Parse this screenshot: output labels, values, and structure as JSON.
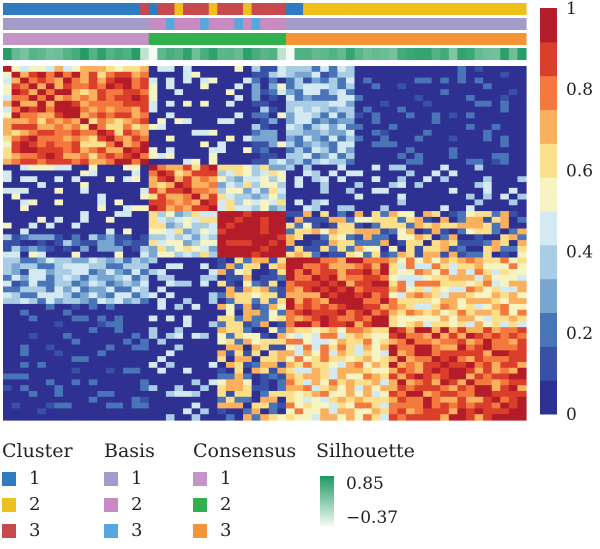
{
  "chart_data": {
    "type": "heatmap",
    "description_scale": "consensus matrix, value 0..1",
    "n_samples": 61,
    "cluster_boundaries": [
      17,
      33
    ],
    "palette": [
      "#2E3092",
      "#3851A6",
      "#4A74B8",
      "#79A6D1",
      "#A9CDE4",
      "#D4EAF3",
      "#F6F4C3",
      "#FCDF8A",
      "#FBB05E",
      "#F3793F",
      "#DC3E2C",
      "#B31C28"
    ],
    "colorbar": {
      "ticks": [
        "0",
        "0.2",
        "0.4",
        "0.6",
        "0.8",
        "1"
      ],
      "tick_values": [
        0,
        0.2,
        0.4,
        0.6,
        0.8,
        1
      ],
      "range": [
        0,
        1
      ]
    },
    "annotation_tracks": [
      "Cluster",
      "Basis",
      "Consensus",
      "Silhouette"
    ],
    "track_colors": {
      "Cluster": {
        "1": "#2E7BBF",
        "2": "#EDC01C",
        "3": "#C8494C"
      },
      "Basis": {
        "1": "#A49BC9",
        "2": "#C98AC1",
        "3": "#55A7DD"
      },
      "Consensus": {
        "1": "#C494C7",
        "2": "#33B04E",
        "3": "#F59436"
      },
      "Silhouette": {
        "high": "#1E9A61",
        "low": "#F4FAF6"
      }
    },
    "legends": [
      {
        "title": "Cluster",
        "items": [
          {
            "label": "1",
            "color": "#2E7BBF"
          },
          {
            "label": "2",
            "color": "#EDC01C"
          },
          {
            "label": "3",
            "color": "#C8494C"
          }
        ]
      },
      {
        "title": "Basis",
        "items": [
          {
            "label": "1",
            "color": "#A49BC9"
          },
          {
            "label": "2",
            "color": "#C98AC1"
          },
          {
            "label": "3",
            "color": "#55A7DD"
          }
        ]
      },
      {
        "title": "Consensus",
        "items": [
          {
            "label": "1",
            "color": "#C494C7"
          },
          {
            "label": "2",
            "color": "#33B04E"
          },
          {
            "label": "3",
            "color": "#F59436"
          }
        ]
      }
    ],
    "silhouette_legend": {
      "title": "Silhouette",
      "max": "0.85",
      "min": "−0.37"
    }
  }
}
